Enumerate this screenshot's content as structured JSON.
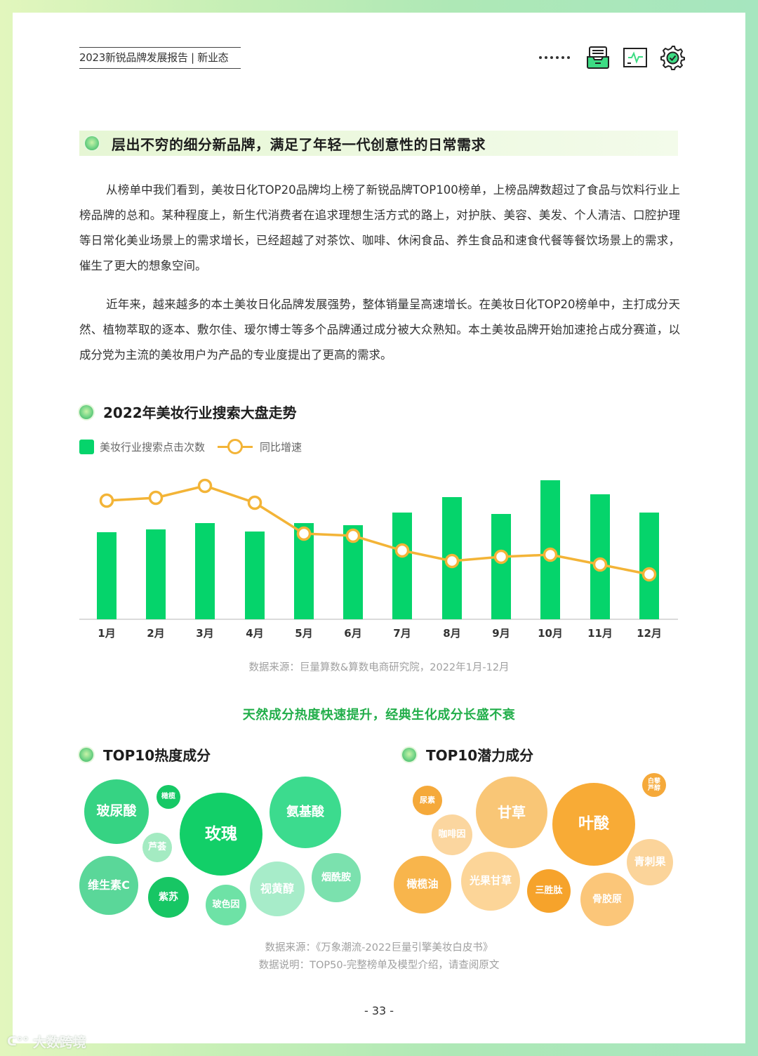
{
  "header": {
    "title": "2023新锐品牌发展报告 | 新业态",
    "icons": [
      "more-dots-icon",
      "inbox-tray-icon",
      "monitor-chart-icon",
      "gear-check-icon"
    ]
  },
  "section": {
    "banner": "层出不穷的细分新品牌，满足了年轻一代创意性的日常需求"
  },
  "paragraphs": [
    "从榜单中我们看到，美妆日化TOP20品牌均上榜了新锐品牌TOP100榜单，上榜品牌数超过了食品与饮料行业上榜品牌的总和。某种程度上，新生代消费者在追求理想生活方式的路上，对护肤、美容、美发、个人清洁、口腔护理等日常化美业场景上的需求增长，已经超越了对茶饮、咖啡、休闲食品、养生食品和速食代餐等餐饮场景上的需求，催生了更大的想象空间。",
    "近年来，越来越多的本土美妆日化品牌发展强势，整体销量呈高速增长。在美妆日化TOP20榜单中，主打成分天然、植物萃取的逐本、敷尔佳、瑷尔博士等多个品牌通过成分被大众熟知。本土美妆品牌开始加速抢占成分赛道，以成分党为主流的美妆用户为产品的专业度提出了更高的需求。"
  ],
  "chart": {
    "title": "2022年美妆行业搜索大盘走势",
    "legend": {
      "bar": "美妆行业搜索点击次数",
      "line": "同比增速"
    },
    "source": "数据来源：巨量算数&算数电商研究院，2022年1月-12月"
  },
  "chart_data": [
    {
      "type": "bar",
      "title": "2022年美妆行业搜索大盘走势",
      "xlabel": "",
      "ylabel": "",
      "categories": [
        "1月",
        "2月",
        "3月",
        "4月",
        "5月",
        "6月",
        "7月",
        "8月",
        "9月",
        "10月",
        "11月",
        "12月"
      ],
      "series": [
        {
          "name": "美妆行业搜索点击次数",
          "type": "bar",
          "color": "#05d46b",
          "values": [
            124,
            128,
            137,
            125,
            137,
            134,
            152,
            174,
            150,
            198,
            178,
            152
          ]
        },
        {
          "name": "同比增速",
          "type": "line",
          "color": "#f3b437",
          "values": [
            169,
            173,
            190,
            166,
            122,
            119,
            98,
            83,
            89,
            92,
            78,
            64
          ]
        }
      ],
      "notes": "Values are relative pixel heights (no y-axis shown); bars start at baseline, line plotted on separate unlabeled scale.",
      "grid": false,
      "legend_position": "top-left"
    },
    {
      "type": "bubble",
      "title": "TOP10热度成分",
      "items": [
        {
          "label": "玫瑰",
          "size": 118
        },
        {
          "label": "玻尿酸",
          "size": 92
        },
        {
          "label": "氨基酸",
          "size": 102
        },
        {
          "label": "维生素C",
          "size": 84
        },
        {
          "label": "视黄醇",
          "size": 78
        },
        {
          "label": "烟酰胺",
          "size": 70
        },
        {
          "label": "玻色因",
          "size": 60
        },
        {
          "label": "紫苏",
          "size": 58
        },
        {
          "label": "芦荟",
          "size": 42
        },
        {
          "label": "橄榄",
          "size": 34
        }
      ]
    },
    {
      "type": "bubble",
      "title": "TOP10潜力成分",
      "items": [
        {
          "label": "叶酸",
          "size": 118
        },
        {
          "label": "甘草",
          "size": 102
        },
        {
          "label": "光果甘草",
          "size": 84
        },
        {
          "label": "橄榄油",
          "size": 82
        },
        {
          "label": "骨胶原",
          "size": 76
        },
        {
          "label": "青刺果",
          "size": 66
        },
        {
          "label": "三胜肽",
          "size": 62
        },
        {
          "label": "咖啡因",
          "size": 58
        },
        {
          "label": "尿素",
          "size": 42
        },
        {
          "label": "白藜芦醇",
          "size": 34
        }
      ]
    }
  ],
  "ingredients": {
    "headline": "天然成分热度快速提升，经典生化成分长盛不衰",
    "hot_title": "TOP10热度成分",
    "potential_title": "TOP10潜力成分",
    "hot": {
      "rose": "玫瑰",
      "hyaluronic": "玻尿酸",
      "amino": "氨基酸",
      "vitc": "维生素C",
      "retinol": "视黄醇",
      "niacinamide": "烟酰胺",
      "proxylane": "玻色因",
      "perilla": "紫苏",
      "aloe": "芦荟",
      "olive": "橄榄"
    },
    "potential": {
      "folic": "叶酸",
      "licorice": "甘草",
      "glabra": "光果甘草",
      "oliveoil": "橄榄油",
      "collagen": "骨胶原",
      "prinsepia": "青刺果",
      "tripeptide": "三胜肽",
      "caffeine": "咖啡因",
      "urea": "尿素",
      "resveratrol_1": "白藜",
      "resveratrol_2": "芦醇"
    },
    "source_1": "数据来源：《万象潮流-2022巨量引擎美妆白皮书》",
    "source_2": "数据说明：TOP50-完整榜单及模型介绍，请查阅原文"
  },
  "footer": {
    "page_number": "- 33 -",
    "watermark": "大数跨境"
  },
  "colors": {
    "bar_green": "#05d46b",
    "line_orange": "#f3b437",
    "headline_green": "#22ae4a"
  }
}
